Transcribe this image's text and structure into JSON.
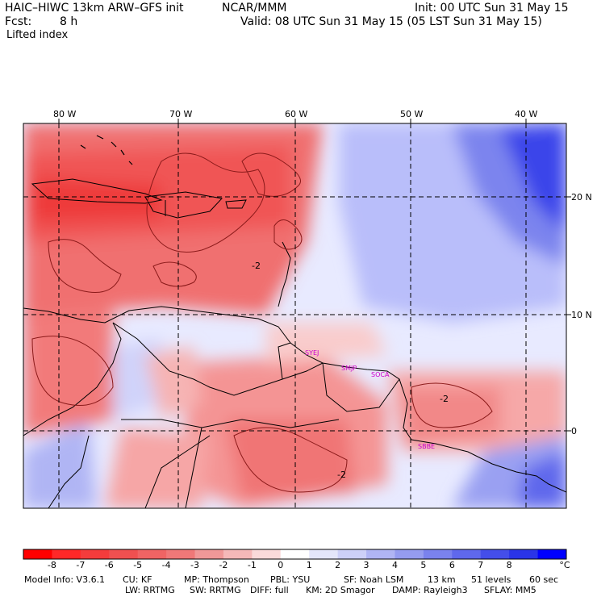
{
  "header": {
    "model_title": "HAIC–HIWC 13km ARW–GFS init",
    "org": "NCAR/MMM",
    "init": "Init: 00 UTC Sun 31 May 15",
    "fcst_label": "Fcst:",
    "fcst_value": "8 h",
    "valid": "Valid: 08 UTC Sun 31 May 15 (05 LST Sun 31 May 15)",
    "field": "Lifted index"
  },
  "map": {
    "lon_labels": [
      "80 W",
      "70 W",
      "60 W",
      "50 W",
      "40 W"
    ],
    "lat_labels": [
      "20 N",
      "10 N",
      "0"
    ],
    "contour_labels": [
      "-2",
      "-2",
      "-2"
    ],
    "stations": [
      "SYEJ",
      "SMJP",
      "SOCA",
      "SBBE"
    ],
    "colors": {
      "neg_strong": "#ff2020",
      "neg_mid": "#f06a6a",
      "neg_weak": "#f8c8c8",
      "pos_weak": "#e6e8ff",
      "pos_mid": "#8c94ee",
      "pos_strong": "#2828ee",
      "grid": "#000000"
    }
  },
  "colorbar": {
    "unit": "°C",
    "ticks": [
      "-8",
      "-7",
      "-6",
      "-5",
      "-4",
      "-3",
      "-2",
      "-1",
      "0",
      "1",
      "2",
      "3",
      "4",
      "5",
      "6",
      "7",
      "8"
    ],
    "colors": [
      "#ff0000",
      "#ff2828",
      "#f43c3c",
      "#f05050",
      "#f06464",
      "#f07878",
      "#f09898",
      "#f5b8b8",
      "#fadada",
      "#ffffff",
      "#e4e6fa",
      "#cdd0f8",
      "#b0b5f4",
      "#959cf0",
      "#7a82ee",
      "#5f68ec",
      "#444eea",
      "#2a34e8",
      "#0000ff"
    ]
  },
  "footer": {
    "line1": [
      "Model Info: V3.6.1",
      "CU: KF",
      "MP: Thompson",
      "PBL: YSU",
      "SF: Noah LSM",
      "13 km",
      "51 levels",
      "60 sec"
    ],
    "line2": [
      "LW: RRTMG",
      "SW: RRTMG",
      "DIFF: full",
      "KM: 2D Smagor",
      "DAMP: Rayleigh3",
      "SFLAY: MM5"
    ]
  }
}
